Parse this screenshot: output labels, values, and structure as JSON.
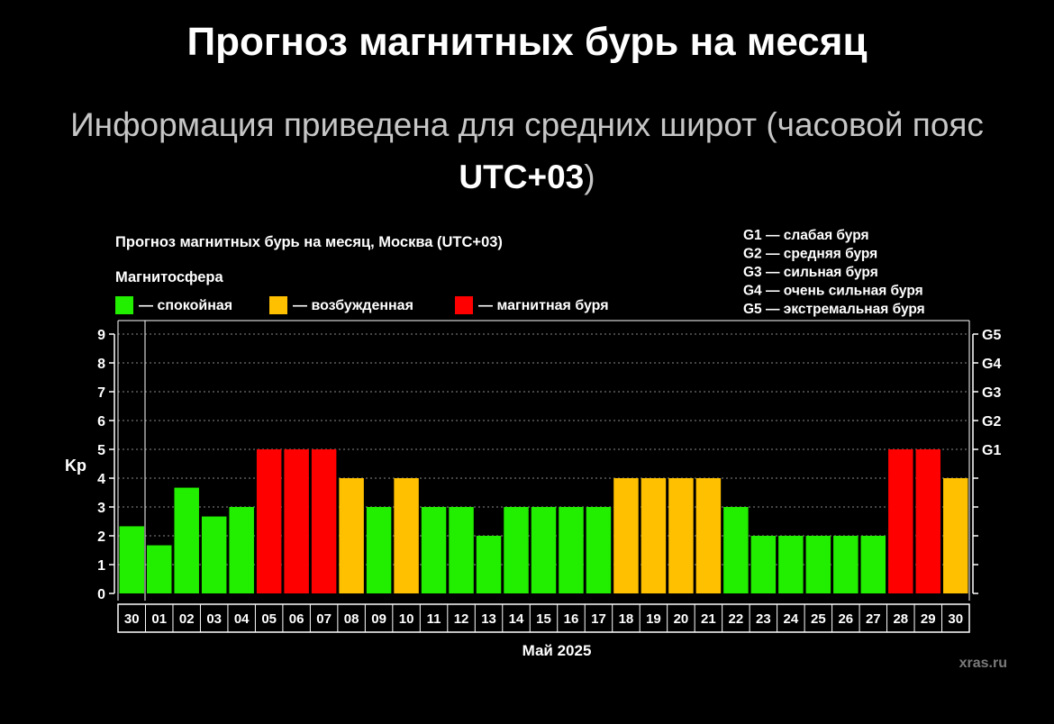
{
  "header": {
    "title": "Прогноз магнитных бурь на месяц",
    "subtitle_pre": "Информация приведена для средних широт (часовой пояс",
    "subtitle_bold": "UTC+03",
    "subtitle_post": ")"
  },
  "chart_data": {
    "type": "bar",
    "title": "Прогноз магнитных бурь на месяц, Москва (UTC+03)",
    "legend_title": "Магнитосфера",
    "legend": [
      {
        "label": "— спокойная",
        "color": "#22ee00"
      },
      {
        "label": "— возбужденная",
        "color": "#ffc000"
      },
      {
        "label": "— магнитная буря",
        "color": "#ff0000"
      }
    ],
    "storm_scale": [
      "G1 — слабая буря",
      "G2 — средняя буря",
      "G3 — сильная буря",
      "G4 — очень сильная буря",
      "G5 — экстремальная буря"
    ],
    "ylabel": "Kp",
    "xlabel": "Май 2025",
    "ylim": [
      0,
      9
    ],
    "yticks": [
      "0",
      "1",
      "2",
      "3",
      "4",
      "5",
      "6",
      "7",
      "8",
      "9"
    ],
    "right_axis": [
      {
        "value": 5,
        "label": "G1"
      },
      {
        "value": 6,
        "label": "G2"
      },
      {
        "value": 7,
        "label": "G3"
      },
      {
        "value": 8,
        "label": "G4"
      },
      {
        "value": 9,
        "label": "G5"
      }
    ],
    "grid": "horizontal dotted",
    "categories": [
      "30",
      "01",
      "02",
      "03",
      "04",
      "05",
      "06",
      "07",
      "08",
      "09",
      "10",
      "11",
      "12",
      "13",
      "14",
      "15",
      "16",
      "17",
      "18",
      "19",
      "20",
      "21",
      "22",
      "23",
      "24",
      "25",
      "26",
      "27",
      "28",
      "29",
      "30"
    ],
    "values": [
      2.33,
      1.67,
      3.67,
      2.67,
      3,
      5,
      5,
      5,
      4,
      3,
      4,
      3,
      3,
      2,
      3,
      3,
      3,
      3,
      4,
      4,
      4,
      4,
      3,
      2,
      2,
      2,
      2,
      2,
      5,
      5,
      4
    ],
    "status": [
      "calm",
      "calm",
      "calm",
      "calm",
      "calm",
      "storm",
      "storm",
      "storm",
      "excited",
      "calm",
      "excited",
      "calm",
      "calm",
      "calm",
      "calm",
      "calm",
      "calm",
      "calm",
      "excited",
      "excited",
      "excited",
      "excited",
      "calm",
      "calm",
      "calm",
      "calm",
      "calm",
      "calm",
      "storm",
      "storm",
      "excited"
    ],
    "status_colors": {
      "calm": "#22ee00",
      "excited": "#ffc000",
      "storm": "#ff0000"
    }
  },
  "watermark": "xras.ru"
}
